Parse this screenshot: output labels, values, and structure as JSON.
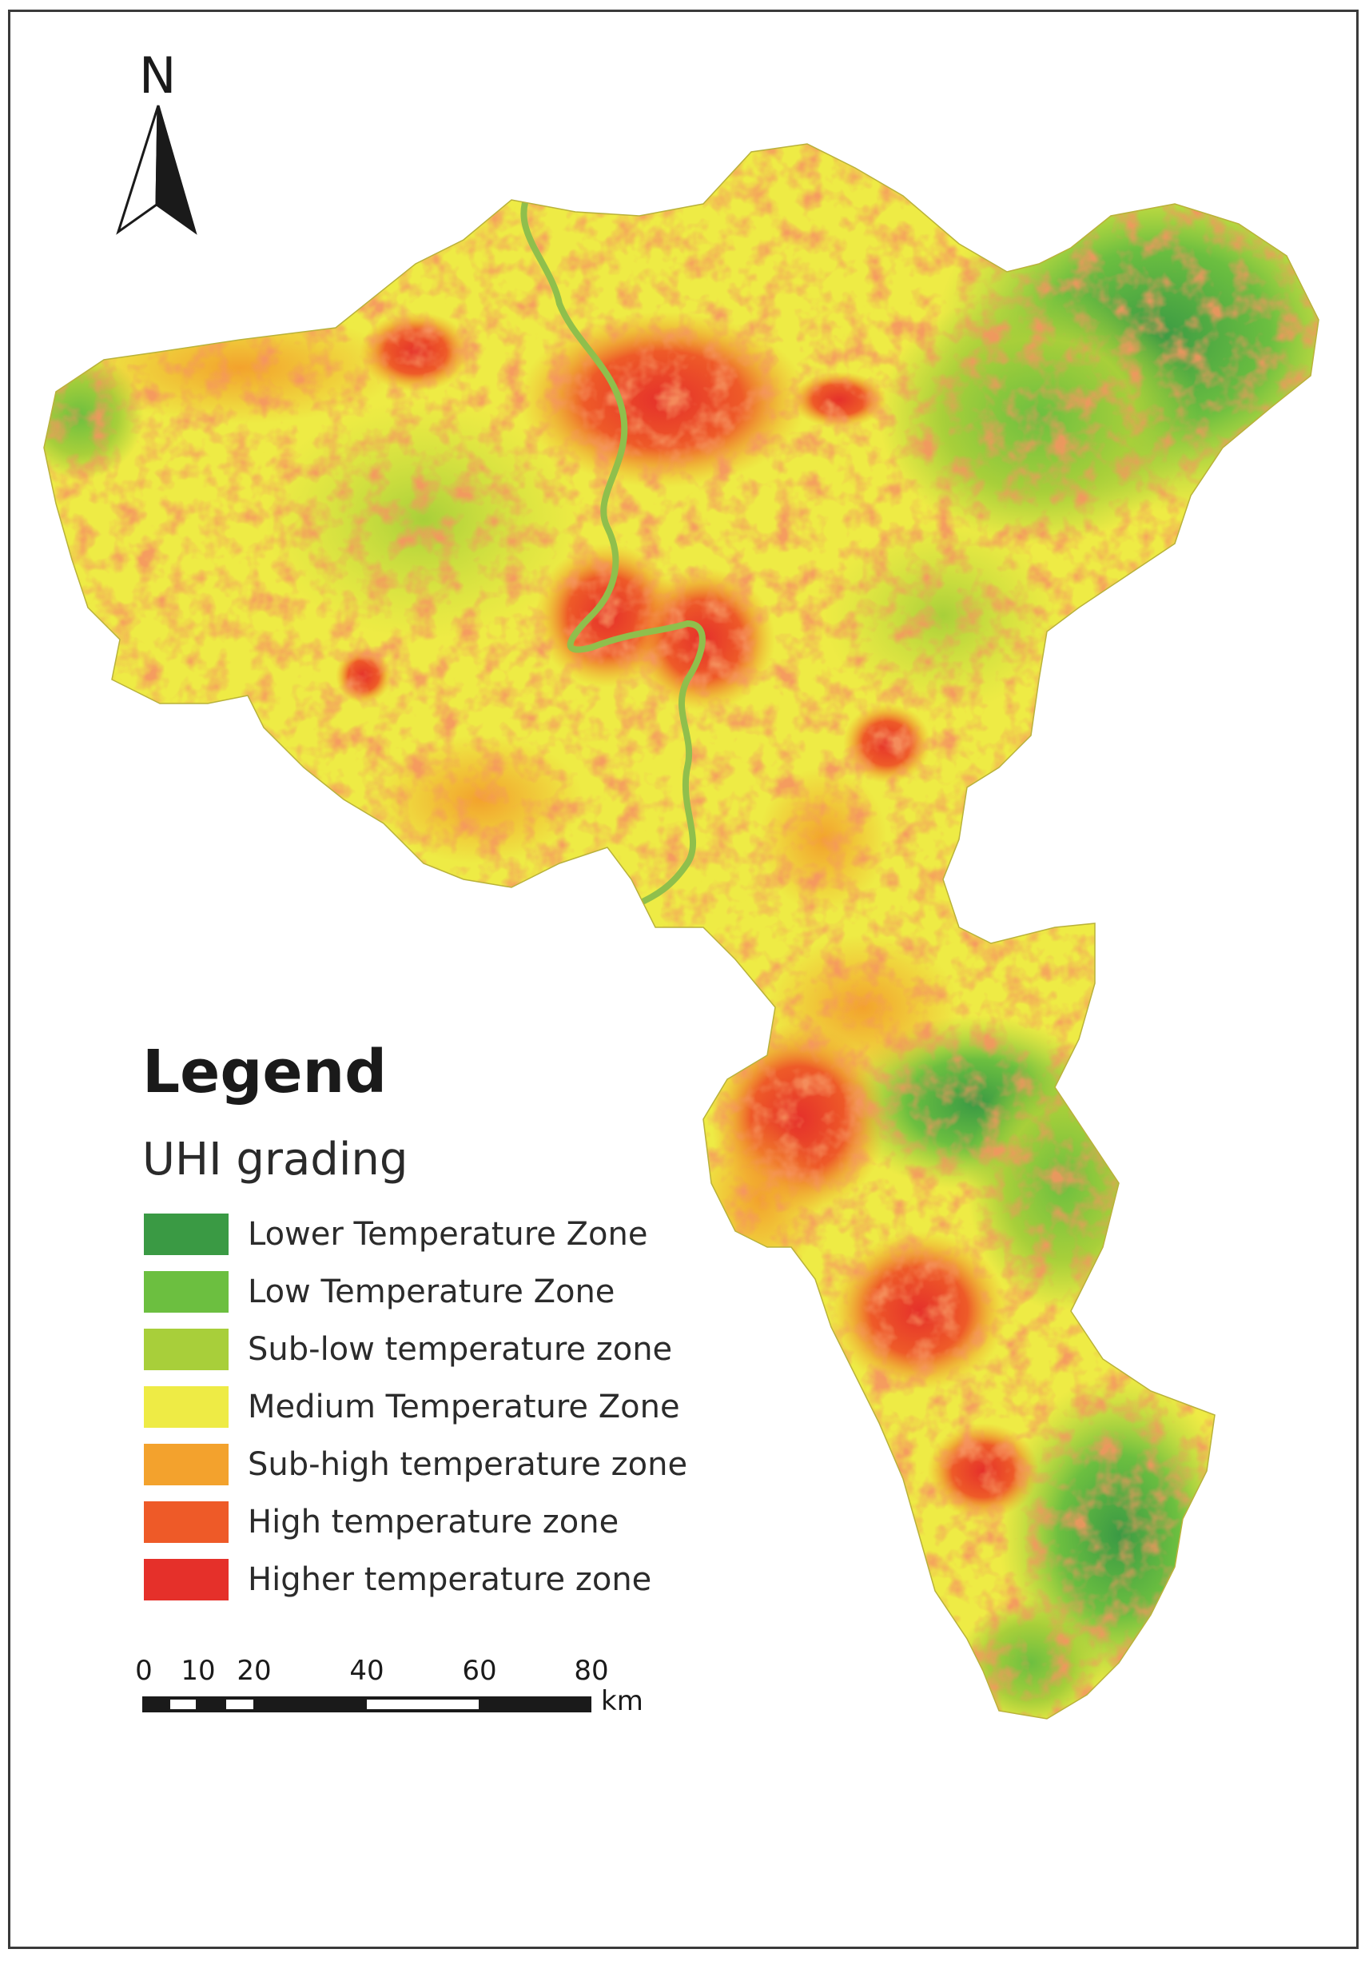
{
  "legend": {
    "title": "Legend",
    "subtitle": "UHI grading",
    "items": [
      {
        "label": "Lower Temperature Zone",
        "color": "#3a9a44"
      },
      {
        "label": "Low Temperature Zone",
        "color": "#6cbf40"
      },
      {
        "label": "Sub-low temperature zone",
        "color": "#a8cf3a"
      },
      {
        "label": "Medium Temperature Zone",
        "color": "#eeeb45"
      },
      {
        "label": "Sub-high temperature zone",
        "color": "#f3a22d"
      },
      {
        "label": "High temperature zone",
        "color": "#ee5a28"
      },
      {
        "label": "Higher temperature zone",
        "color": "#e5302a"
      }
    ]
  },
  "north_arrow": {
    "label": "N"
  },
  "scale_bar": {
    "ticks": [
      "0",
      "10",
      "20",
      "40",
      "60",
      "80"
    ],
    "unit": "km"
  }
}
